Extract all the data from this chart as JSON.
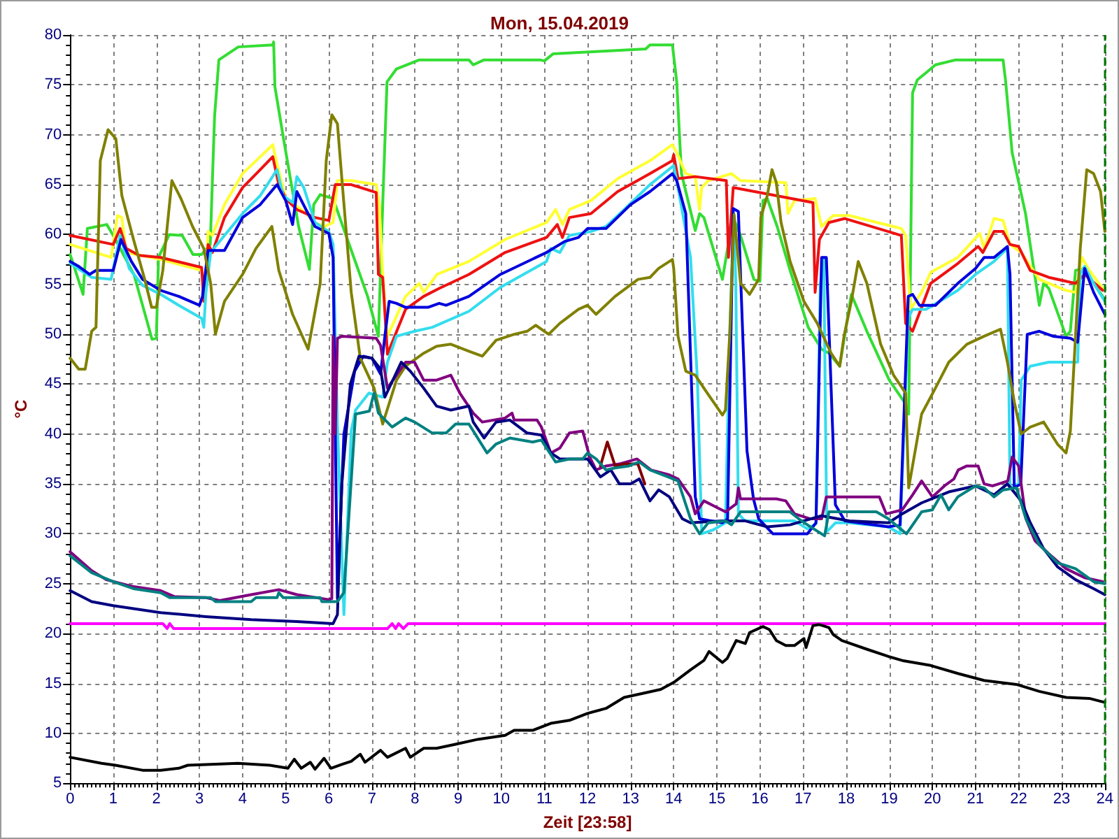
{
  "chart_data": {
    "type": "line",
    "title": "Mon, 15.04.2019",
    "xlabel": "Zeit [23:58]",
    "ylabel": "°C",
    "xlim": [
      0,
      24
    ],
    "xticks": [
      0,
      1,
      2,
      3,
      4,
      5,
      6,
      7,
      8,
      9,
      10,
      11,
      12,
      13,
      14,
      15,
      16,
      17,
      18,
      19,
      20,
      21,
      22,
      23,
      24
    ],
    "ylim": [
      5,
      80
    ],
    "yticks": [
      5,
      10,
      15,
      20,
      25,
      30,
      35,
      40,
      45,
      50,
      55,
      60,
      65,
      70,
      75,
      80
    ],
    "grid": true,
    "marker": "none",
    "line_style": "solid",
    "ref_lines": [
      {
        "axis": "x",
        "value": 24,
        "color": "#007700",
        "line_style": "dashed"
      }
    ],
    "series": [
      {
        "color": "#33dd33",
        "x": [
          0,
          0.3,
          0.4,
          0.85,
          1,
          1.48,
          1.9,
          2,
          2.05,
          2.3,
          2.6,
          2.85,
          3.05,
          3.25,
          3.35,
          3.45,
          3.9,
          4.7,
          4.72,
          4.75,
          4.95,
          5.3,
          5.55,
          5.65,
          5.8,
          6.1,
          6.4,
          6.9,
          7.15,
          7.25,
          7.35,
          7.57,
          8.1,
          9.25,
          9.35,
          9.6,
          10.9,
          11,
          11.2,
          13.35,
          13.45,
          13.97,
          14.07,
          14.18,
          14.5,
          14.6,
          14.7,
          15.13,
          15.3,
          15.34,
          15.55,
          15.86,
          16,
          16.07,
          16.17,
          16.4,
          16.7,
          17.12,
          17.43,
          17.6,
          17.85,
          18.12,
          18.48,
          19,
          19.35,
          19.45,
          19.54,
          19.65,
          19.85,
          20.07,
          20.54,
          21.64,
          21.7,
          21.85,
          22.16,
          22.48,
          22.58,
          22.7,
          23.1,
          23.2,
          23.32,
          23.53,
          23.74,
          23.95
        ],
        "values": [
          58,
          54,
          60.6,
          61,
          59.9,
          56,
          49.5,
          49.6,
          57.7,
          60,
          59.9,
          58,
          58,
          59,
          71.8,
          77.5,
          78.8,
          79,
          79.3,
          74.8,
          69.6,
          60.8,
          56.5,
          63,
          64,
          63.6,
          59.9,
          53.8,
          49.8,
          63,
          75.3,
          76.6,
          77.5,
          77.5,
          77,
          77.5,
          77.5,
          77.4,
          78.1,
          78.6,
          79,
          79,
          75.3,
          66.1,
          60.4,
          62.1,
          61.7,
          55.5,
          59.9,
          62.1,
          59.9,
          55.5,
          55.3,
          63.4,
          63.6,
          60.8,
          56.4,
          50.7,
          48.5,
          48.1,
          46.8,
          54,
          50.3,
          45.4,
          43.2,
          42,
          74.2,
          75.5,
          76.2,
          77,
          77.5,
          77.5,
          75.3,
          68.2,
          62.1,
          52.9,
          55.1,
          54.6,
          49.8,
          50.3,
          56.4,
          56.6,
          55.1,
          53.8
        ]
      },
      {
        "color": "#ffff33",
        "x": [
          0,
          0.95,
          1.1,
          1.2,
          1.3,
          2.1,
          3.05,
          3.15,
          3.2,
          3.3,
          3.58,
          4,
          4.41,
          4.7,
          4.78,
          5,
          5.16,
          5.47,
          5.68,
          5.9,
          6.1,
          6.2,
          6.52,
          7.1,
          7.17,
          7.25,
          7.36,
          7.78,
          8.1,
          8.2,
          8.51,
          9.25,
          10.09,
          11.05,
          11.26,
          11.42,
          11.58,
          12.08,
          12.7,
          13.45,
          13.97,
          14.07,
          14.28,
          14.5,
          14.6,
          14.65,
          14.8,
          15.34,
          15.55,
          16.6,
          16.65,
          16.8,
          17.28,
          17.43,
          17.7,
          18.07,
          19.28,
          19.38,
          19.49,
          19.75,
          19.96,
          20.59,
          21.1,
          21.2,
          21.43,
          21.64,
          21.8,
          22.06,
          22.48,
          23.1,
          23.32,
          23.47,
          23.64,
          23.95
        ],
        "values": [
          59,
          57.7,
          61.9,
          61.7,
          58.2,
          57.5,
          56.4,
          54.6,
          60.3,
          59.9,
          63,
          66.1,
          67.8,
          69,
          67.4,
          63.6,
          63.2,
          62.1,
          61.2,
          60.8,
          61.2,
          65.4,
          65.4,
          65,
          63,
          56,
          49.8,
          53.8,
          55.1,
          54.2,
          56,
          57.3,
          59.5,
          61.2,
          62.5,
          61,
          62.5,
          63.4,
          65.6,
          67.4,
          69,
          68.2,
          66.1,
          65.8,
          62.5,
          64.7,
          65.4,
          66.1,
          65.4,
          65.2,
          62.1,
          63.4,
          63.6,
          60.8,
          61.9,
          61.9,
          60.6,
          59.9,
          52.5,
          54.2,
          56.2,
          57.7,
          60.1,
          58.6,
          61.6,
          61.4,
          59,
          58.2,
          55.5,
          54.4,
          54.2,
          57.7,
          56.4,
          54.6
        ]
      },
      {
        "color": "#ee1111",
        "x": [
          0,
          1,
          1.16,
          1.3,
          1.6,
          2.1,
          3.05,
          3.1,
          3.2,
          3.3,
          3.58,
          4,
          4.41,
          4.7,
          4.83,
          5,
          5.26,
          5.68,
          6,
          6.15,
          6.52,
          7.1,
          7.15,
          7.25,
          7.36,
          7.78,
          8.2,
          8.56,
          9.25,
          10.09,
          11.05,
          11.3,
          11.42,
          11.58,
          12.08,
          12.7,
          13.45,
          13.97,
          14,
          14.1,
          14.5,
          15.22,
          15.27,
          15.38,
          17.23,
          17.28,
          17.38,
          17.6,
          17.97,
          19.28,
          19.38,
          19.54,
          19.96,
          20.59,
          21.06,
          21.17,
          21.43,
          21.64,
          21.8,
          22,
          22.27,
          22.7,
          23.32,
          23.53,
          23.95
        ],
        "values": [
          59.9,
          59,
          60.6,
          58.6,
          57.9,
          57.7,
          56.7,
          53.3,
          59,
          58.2,
          61.7,
          64.7,
          66.5,
          67.8,
          65.2,
          63.6,
          62.5,
          61.7,
          61.4,
          65,
          65,
          64.2,
          56,
          55.7,
          48,
          52.5,
          53.8,
          54.6,
          56,
          58.2,
          59.7,
          61,
          59.7,
          61.7,
          62.1,
          64.3,
          66.1,
          67.4,
          68,
          65.6,
          65.8,
          65.4,
          57.7,
          64.7,
          63.2,
          54.2,
          59.5,
          61.2,
          61.6,
          59.9,
          51.1,
          50.3,
          55.1,
          57.1,
          58.8,
          58.2,
          60.3,
          60.3,
          59,
          58.8,
          56.4,
          55.7,
          55.1,
          56,
          54.4
        ]
      },
      {
        "color": "#33ddee",
        "x": [
          0,
          0.5,
          0.95,
          1.16,
          1.37,
          1.68,
          2.1,
          2.52,
          3.05,
          3.1,
          3.15,
          3.26,
          3.58,
          4,
          4.41,
          4.8,
          4.94,
          5.16,
          5.26,
          5.42,
          5.68,
          6,
          6.1,
          6.2,
          6.35,
          6.52,
          6.62,
          6.93,
          7.25,
          7.36,
          7.57,
          7.99,
          8.4,
          9.25,
          9.98,
          11.05,
          11.15,
          11.36,
          11.58,
          12.08,
          12.43,
          12.85,
          13.45,
          14,
          14.1,
          14.39,
          14.55,
          14.65,
          14.92,
          15.2,
          15.3,
          15.39,
          15.44,
          15.5,
          15.65,
          16.8,
          17.1,
          17.3,
          17.4,
          17.48,
          17.55,
          17.75,
          18.07,
          18.98,
          19.25,
          19.44,
          19.54,
          19.85,
          20.17,
          20.59,
          21,
          21.43,
          21.64,
          21.74,
          21.8,
          22,
          22.06,
          22.27,
          22.7,
          23.37,
          23.43,
          23.53,
          23.74,
          24
        ],
        "values": [
          57.1,
          55.7,
          55.5,
          59.9,
          56.6,
          54.9,
          54,
          52.9,
          51.6,
          50.7,
          54.2,
          58.2,
          59.9,
          62.1,
          63.9,
          66.5,
          63.9,
          63.2,
          65.8,
          64.7,
          61.2,
          60.3,
          59,
          41,
          21.9,
          40.3,
          42.4,
          44.1,
          43.7,
          47.2,
          49.8,
          50.3,
          50.7,
          52.3,
          54.7,
          57.3,
          58.6,
          58.2,
          59.9,
          60.3,
          60.8,
          62.5,
          65,
          66.9,
          64.7,
          57.7,
          45.4,
          30,
          30.4,
          31.1,
          50,
          62.1,
          55.1,
          32,
          31.3,
          31.3,
          30.5,
          31,
          55,
          57.7,
          30.2,
          31.1,
          31.1,
          30.7,
          30,
          51.6,
          52.5,
          52.5,
          53.3,
          54.4,
          56,
          57.3,
          58.2,
          58.6,
          34.6,
          35,
          45.4,
          46.8,
          47.2,
          47.2,
          56,
          56.8,
          55.1,
          53.3
        ]
      },
      {
        "color": "#0000dd",
        "x": [
          0,
          0.2,
          0.45,
          0.6,
          1,
          1.18,
          1.42,
          1.68,
          2.1,
          2.52,
          3,
          3.07,
          3.2,
          3.58,
          4,
          4.41,
          4.8,
          5,
          5.16,
          5.26,
          5.47,
          5.68,
          6,
          6.1,
          6.2,
          6.35,
          6.6,
          6.8,
          7,
          7.2,
          7.3,
          7.4,
          7.57,
          7.78,
          8.3,
          8.56,
          8.72,
          9.25,
          9.98,
          11.05,
          11.47,
          11.79,
          12,
          12.43,
          13,
          13.45,
          13.97,
          14.07,
          14.28,
          14.5,
          14.6,
          15.13,
          15.25,
          15.38,
          15.5,
          15.55,
          15.7,
          15.85,
          15.97,
          16.3,
          17.1,
          17.3,
          17.43,
          17.54,
          17.75,
          17.97,
          18.98,
          19.25,
          19.44,
          19.54,
          19.7,
          20.07,
          20.59,
          21,
          21.2,
          21.43,
          21.74,
          21.8,
          21.9,
          22.05,
          22.2,
          22.48,
          22.8,
          23.2,
          23.37,
          23.53,
          23.74,
          24
        ],
        "values": [
          57.3,
          56.8,
          56,
          56.4,
          56.4,
          59.5,
          57.3,
          55.5,
          54.4,
          53.8,
          52.9,
          53.8,
          58.4,
          58.4,
          61.7,
          63,
          65,
          63.4,
          61,
          64.3,
          62.5,
          60.8,
          60.1,
          57.7,
          23.5,
          40,
          46.3,
          47.8,
          47.6,
          46,
          49.8,
          53.3,
          53.1,
          52.7,
          52.7,
          53.1,
          52.9,
          53.8,
          56,
          58.2,
          59.3,
          59.7,
          60.6,
          60.6,
          63,
          64.3,
          66.1,
          65.4,
          62.1,
          33.7,
          31.5,
          31.1,
          31.5,
          62.6,
          62.3,
          56,
          38.3,
          33.5,
          31.5,
          30,
          30,
          31.1,
          57.7,
          57.7,
          32.9,
          31.3,
          30.7,
          30.9,
          53.8,
          54,
          52.9,
          52.9,
          55.1,
          56.6,
          57.7,
          57.7,
          58.8,
          56,
          34.6,
          35,
          50,
          50.3,
          49.8,
          49.6,
          49.2,
          56.6,
          54.2,
          52
        ]
      },
      {
        "color": "#808000",
        "x": [
          0,
          0.2,
          0.35,
          0.5,
          0.6,
          0.7,
          0.88,
          1.06,
          1.2,
          1.47,
          1.73,
          1.89,
          2,
          2.15,
          2.36,
          2.57,
          2.84,
          3.1,
          3.26,
          3.37,
          3.58,
          4,
          4.31,
          4.68,
          4.84,
          5.16,
          5.52,
          5.8,
          5.94,
          6.07,
          6.2,
          6.31,
          6.52,
          6.73,
          7.05,
          7.25,
          7.57,
          7.78,
          8.2,
          8.5,
          8.83,
          9.25,
          9.56,
          9.88,
          10.3,
          10.6,
          10.8,
          11.1,
          11.36,
          11.79,
          12,
          12.2,
          12.64,
          13.17,
          13.45,
          13.65,
          13.97,
          14,
          14.1,
          14.28,
          14.5,
          14.7,
          15.13,
          15.2,
          15.3,
          15.4,
          15.55,
          15.76,
          15.97,
          16.02,
          16.17,
          16.28,
          16.38,
          16.49,
          16.7,
          17.02,
          17.33,
          17.65,
          17.85,
          17.95,
          18.12,
          18.28,
          18.48,
          18.8,
          19.1,
          19.38,
          19.45,
          19.75,
          20.07,
          20.38,
          20.8,
          21.2,
          21.58,
          21.74,
          21.9,
          22.06,
          22.27,
          22.58,
          22.9,
          23.1,
          23.2,
          23.32,
          23.43,
          23.58,
          23.74,
          23.9,
          24
        ],
        "values": [
          47.6,
          46.5,
          46.5,
          50.3,
          50.7,
          67.4,
          70.5,
          69.6,
          63.9,
          59.5,
          55.5,
          52.7,
          52.7,
          56.4,
          65.4,
          63.6,
          60.8,
          58.6,
          55.1,
          50,
          53.3,
          56,
          58.6,
          60.8,
          56.4,
          52,
          48.5,
          55.1,
          67.4,
          72,
          71.1,
          65.2,
          54.2,
          47.6,
          44.6,
          41,
          45.4,
          46.8,
          48.1,
          48.8,
          49,
          48.3,
          47.8,
          49.4,
          50,
          50.3,
          50.9,
          50,
          51.1,
          52.5,
          52.9,
          52,
          53.8,
          55.5,
          55.7,
          56.6,
          57.5,
          56.6,
          49.8,
          46.3,
          45.9,
          44.6,
          41.9,
          42.4,
          50,
          62,
          55.1,
          54,
          55.5,
          61.7,
          63.9,
          66.5,
          65.2,
          61.2,
          57.3,
          53.3,
          51.1,
          48.1,
          46.8,
          49.8,
          53.3,
          57.3,
          55.1,
          49,
          45.9,
          44.1,
          34.6,
          42,
          44.6,
          47.2,
          49,
          49.8,
          50.5,
          47.2,
          43.2,
          40,
          40.7,
          41.2,
          39,
          38.1,
          40.3,
          49.8,
          58.6,
          66.5,
          66.1,
          64.3,
          60.3
        ]
      },
      {
        "color": "#800080",
        "x": [
          0,
          0.5,
          0.84,
          1.47,
          2.1,
          2.42,
          3.15,
          3.47,
          4.2,
          4.84,
          5.26,
          6,
          6.07,
          6.1,
          6.15,
          6.2,
          6.31,
          7.1,
          7.2,
          7.36,
          7.57,
          7.78,
          7.99,
          8.2,
          8.5,
          8.83,
          9.04,
          9.35,
          9.56,
          10.09,
          10.25,
          10.3,
          10.83,
          10.93,
          11.15,
          11.36,
          11.58,
          11.89,
          12.05,
          12.2,
          12.43,
          12.74,
          13.15,
          13.47,
          13.9,
          14.1,
          14.39,
          14.5,
          14.7,
          15.2,
          15.45,
          15.5,
          15.55,
          16.38,
          16.6,
          16.8,
          17.17,
          17.43,
          17.54,
          18.77,
          18.93,
          19.3,
          19.54,
          19.75,
          20,
          20.28,
          20.5,
          20.6,
          20.8,
          21.06,
          21.2,
          21.4,
          21.75,
          21.85,
          22,
          22.17,
          22.38,
          22.7,
          23.1,
          23.53,
          23.95
        ],
        "values": [
          28.2,
          26.3,
          25.4,
          24.7,
          24.3,
          23.7,
          23.6,
          23.3,
          23.9,
          24.4,
          23.9,
          23.4,
          23.5,
          49.8,
          40,
          49.6,
          49.8,
          49.6,
          48.9,
          44.6,
          45.9,
          47.2,
          47.2,
          45.4,
          45.4,
          45.9,
          44.1,
          42.1,
          41.2,
          41.6,
          42.1,
          41.4,
          41.4,
          40.7,
          38.1,
          38.6,
          40.1,
          40.3,
          37.7,
          36.4,
          36.8,
          37,
          37.5,
          36.4,
          35.9,
          35.5,
          33.7,
          32,
          33.3,
          32.2,
          33,
          34.6,
          33.5,
          33.5,
          33.3,
          32,
          31.5,
          31.5,
          33.7,
          33.7,
          32,
          32.4,
          33.9,
          35.3,
          33.7,
          34.8,
          35.5,
          36.4,
          36.8,
          36.8,
          35,
          34.8,
          35.3,
          37.7,
          36.8,
          31.5,
          29.3,
          28,
          26.5,
          25.6,
          25.2
        ]
      },
      {
        "color": "#800000",
        "x": [
          12.3,
          12.46,
          12.64,
          12.85,
          13.17,
          13.33
        ],
        "values": [
          36.8,
          39.2,
          36.8,
          37,
          37,
          35
        ]
      },
      {
        "color": "#000080",
        "x": [
          0,
          0.5,
          1,
          2.1,
          3.15,
          4.2,
          5.26,
          6.1,
          6.2,
          6.3,
          6.5,
          6.7,
          7,
          7.2,
          7.3,
          7.68,
          7.89,
          8.2,
          8.5,
          8.83,
          9.25,
          9.35,
          9.6,
          9.88,
          10.2,
          10.6,
          10.93,
          11.15,
          11.36,
          12,
          12.3,
          12.54,
          12.74,
          13,
          13.2,
          13.45,
          13.65,
          13.9,
          14.2,
          14.39,
          15.13,
          15.65,
          16.17,
          16.7,
          17.02,
          17.43,
          18.07,
          18.98,
          19.3,
          19.75,
          20.38,
          21,
          21.43,
          21.74,
          22.06,
          22.27,
          22.58,
          22.9,
          23.32,
          23.74,
          24
        ],
        "values": [
          24.3,
          23.2,
          22.8,
          22.1,
          21.7,
          21.4,
          21.2,
          21,
          21.9,
          35,
          45,
          47.8,
          47.6,
          46.5,
          43.7,
          47.2,
          46.3,
          44.6,
          42.8,
          42.4,
          42.8,
          41.2,
          39.6,
          41.2,
          41.4,
          40.1,
          39.9,
          38.1,
          37.5,
          37.5,
          35.7,
          36.4,
          35,
          35,
          35.5,
          33.3,
          34.4,
          33.7,
          31.5,
          31.1,
          31.3,
          31.3,
          30.7,
          30.9,
          31.3,
          31.8,
          31.3,
          31.1,
          32,
          33.1,
          34.2,
          34.8,
          33.9,
          35,
          33.3,
          31.1,
          28.5,
          26.7,
          25.4,
          24.5,
          23.9
        ]
      },
      {
        "color": "#008080",
        "x": [
          0,
          0.5,
          1,
          1.47,
          2.1,
          2.31,
          3.26,
          3.37,
          4.2,
          4.31,
          4.8,
          4.84,
          4.94,
          5.8,
          5.84,
          6.2,
          6.35,
          6.62,
          6.94,
          7.05,
          7.15,
          7.47,
          7.78,
          7.99,
          8.4,
          8.72,
          8.94,
          9.25,
          9.67,
          9.88,
          10.2,
          10.73,
          10.93,
          11.26,
          11.58,
          11.89,
          12,
          12.2,
          12.43,
          12.64,
          12.96,
          13.2,
          13.45,
          13.87,
          14.1,
          14.39,
          14.6,
          14.8,
          15.2,
          15.34,
          15.55,
          16.7,
          16.9,
          17.1,
          17.5,
          17.6,
          18.7,
          18.98,
          19.4,
          19.75,
          20,
          20.2,
          20.38,
          20.59,
          21,
          21.2,
          21.43,
          21.64,
          21.95,
          22.17,
          22.48,
          22.9,
          23.32,
          23.74,
          24
        ],
        "values": [
          27.8,
          26.1,
          25.2,
          24.5,
          24.1,
          23.6,
          23.6,
          23.2,
          23.2,
          23.6,
          23.6,
          24.1,
          23.6,
          23.6,
          23.2,
          23.2,
          24.1,
          42,
          42.3,
          44.1,
          42.1,
          40.7,
          41.6,
          41.2,
          40.1,
          40.1,
          41,
          41,
          38.1,
          39,
          39.6,
          39.2,
          39.4,
          37.2,
          37.5,
          37.5,
          38.1,
          37.5,
          36.4,
          36.6,
          36.8,
          37.2,
          36.4,
          35.7,
          35.3,
          31.5,
          30,
          31.1,
          31.3,
          30.9,
          32.2,
          32.2,
          31.5,
          30.9,
          29.8,
          32.2,
          32.2,
          31.5,
          30,
          32.2,
          32.4,
          33.9,
          32.4,
          33.7,
          34.8,
          34.6,
          33.7,
          34.4,
          34.6,
          31.5,
          28.9,
          27.1,
          26.5,
          25.2,
          25
        ]
      },
      {
        "color": "#ff00ff",
        "x": [
          0,
          2.15,
          2.25,
          2.31,
          2.4,
          7.36,
          7.47,
          7.55,
          7.62,
          7.73,
          7.84,
          24
        ],
        "values": [
          21,
          21,
          20.5,
          21,
          20.5,
          20.5,
          21,
          20.5,
          21,
          20.5,
          21,
          21
        ]
      },
      {
        "color": "#000000",
        "x": [
          0,
          0.73,
          1.05,
          1.68,
          2.1,
          2.52,
          2.73,
          3.37,
          3.89,
          4.63,
          5.05,
          5.2,
          5.36,
          5.57,
          5.68,
          5.89,
          6.05,
          6.31,
          6.52,
          6.73,
          6.84,
          7.2,
          7.36,
          7.78,
          7.89,
          8.2,
          8.5,
          8.94,
          9.46,
          10.09,
          10.3,
          10.73,
          11.15,
          11.58,
          12,
          12.43,
          12.85,
          13.28,
          13.7,
          14,
          14.4,
          14.7,
          14.82,
          15.13,
          15.24,
          15.45,
          15.66,
          15.76,
          16.07,
          16.22,
          16.38,
          16.6,
          16.8,
          17.02,
          17.07,
          17.23,
          17.38,
          17.6,
          17.7,
          17.9,
          18.5,
          18.98,
          19.3,
          19.96,
          20.59,
          21.2,
          21.95,
          22.48,
          23.1,
          23.64,
          24
        ],
        "values": [
          7.6,
          7,
          6.8,
          6.3,
          6.3,
          6.5,
          6.8,
          6.9,
          7,
          6.8,
          6.5,
          7.4,
          6.5,
          7.1,
          6.4,
          7.5,
          6.5,
          6.9,
          7.2,
          7.9,
          7.1,
          8.3,
          7.6,
          8.5,
          7.6,
          8.5,
          8.5,
          8.9,
          9.4,
          9.8,
          10.3,
          10.3,
          11,
          11.3,
          12,
          12.5,
          13.6,
          14,
          14.4,
          15.1,
          16.4,
          17.3,
          18.2,
          17.1,
          17.5,
          19.3,
          19,
          20.1,
          20.7,
          20.4,
          19.3,
          18.8,
          18.8,
          19.5,
          18.6,
          20.8,
          20.9,
          20.6,
          19.9,
          19.3,
          18.4,
          17.7,
          17.3,
          16.8,
          16,
          15.3,
          14.9,
          14.2,
          13.6,
          13.5,
          13.1
        ]
      }
    ]
  }
}
